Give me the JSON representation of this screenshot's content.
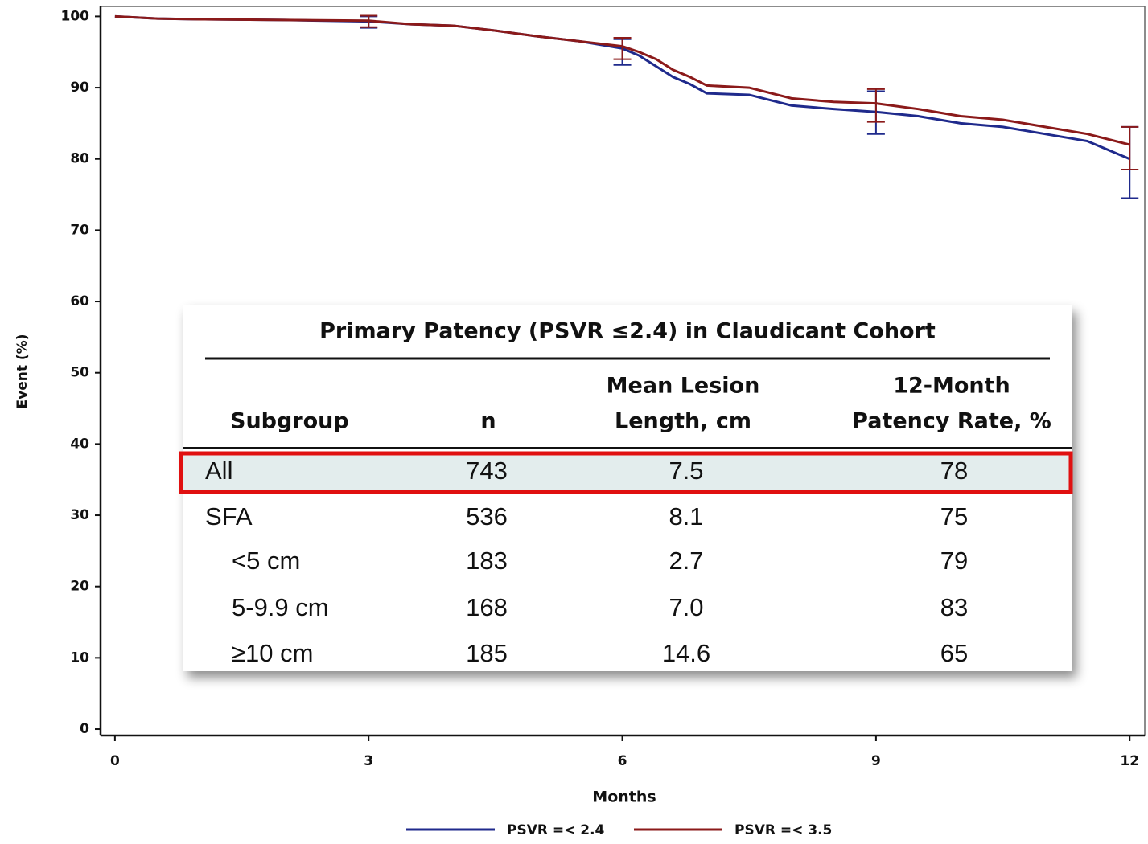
{
  "chart_data": {
    "type": "line",
    "ylabel": "Event (%)",
    "xlabel": "Months",
    "x": [
      0,
      0.5,
      1,
      2,
      3,
      3.5,
      4,
      4.5,
      5,
      5.5,
      6,
      6.2,
      6.4,
      6.6,
      6.8,
      7,
      7.5,
      8,
      8.5,
      9,
      9.5,
      10,
      10.5,
      11,
      11.5,
      12
    ],
    "series": [
      {
        "name": "PSVR =< 2.4",
        "color": "#1f2a8c",
        "values": [
          100,
          99.7,
          99.6,
          99.5,
          99.3,
          98.9,
          98.7,
          98,
          97.2,
          96.5,
          95.5,
          94.5,
          93,
          91.5,
          90.5,
          89.2,
          89,
          87.5,
          87,
          86.6,
          86,
          85,
          84.5,
          83.5,
          82.5,
          80
        ],
        "ci_x": [
          3,
          6,
          9,
          12
        ],
        "ci_values": [
          99.2,
          95,
          86.5,
          79.5
        ],
        "ci_errors": [
          0.8,
          1.8,
          3,
          5
        ]
      },
      {
        "name": "PSVR =< 3.5",
        "color": "#8b1a1a",
        "values": [
          100,
          99.7,
          99.6,
          99.5,
          99.4,
          98.9,
          98.7,
          98,
          97.2,
          96.5,
          95.8,
          95,
          94,
          92.5,
          91.5,
          90.3,
          90,
          88.5,
          88,
          87.8,
          87,
          86,
          85.5,
          84.5,
          83.5,
          82
        ],
        "ci_x": [
          3,
          6,
          9,
          12
        ],
        "ci_values": [
          99.3,
          95.5,
          87.5,
          81.5
        ],
        "ci_errors": [
          0.8,
          1.5,
          2.3,
          3
        ]
      }
    ],
    "xlim": [
      -0.17,
      12.15
    ],
    "xticks": [
      0,
      3,
      6,
      9,
      12
    ],
    "ylim": [
      -0.9,
      101.4
    ],
    "yticks": [
      0,
      10,
      20,
      30,
      40,
      50,
      60,
      70,
      80,
      90,
      100
    ]
  },
  "table": {
    "title": "Primary Patency (PSVR ≤2.4) in Claudicant Cohort",
    "columns": [
      [
        "Subgroup"
      ],
      [
        "n"
      ],
      [
        "Mean Lesion",
        "Length, cm"
      ],
      [
        "12-Month",
        "Patency Rate, %"
      ]
    ],
    "rows": [
      [
        "All",
        "743",
        "7.5",
        "78"
      ],
      [
        "SFA",
        "536",
        "8.1",
        "75"
      ],
      [
        "<5 cm",
        "183",
        "2.7",
        "79"
      ],
      [
        "5-9.9 cm",
        "168",
        "7.0",
        "83"
      ],
      [
        "≥10 cm",
        "185",
        "14.6",
        "65"
      ]
    ]
  }
}
